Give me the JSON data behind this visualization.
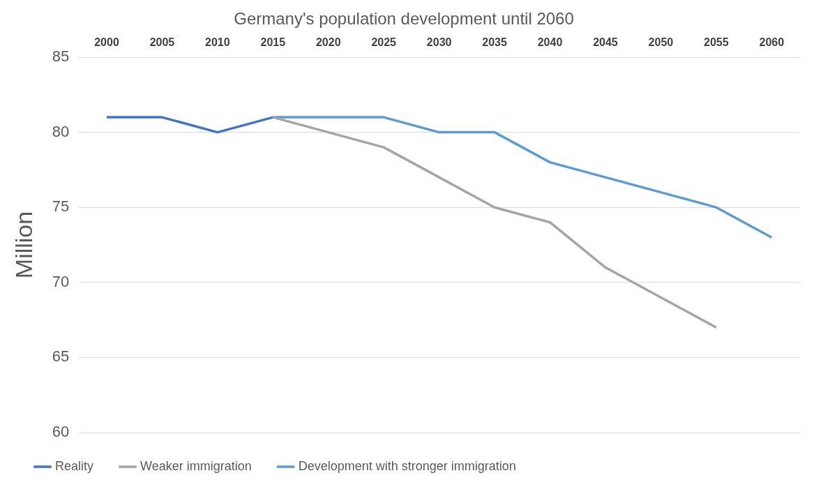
{
  "chart_data": {
    "type": "line",
    "title": "Germany's population development until 2060",
    "ylabel": "Million",
    "categories": [
      "2000",
      "2005",
      "2010",
      "2015",
      "2020",
      "2025",
      "2030",
      "2035",
      "2040",
      "2045",
      "2050",
      "2055",
      "2060"
    ],
    "series": [
      {
        "name": "Reality",
        "color": "#4472c4",
        "values": [
          81,
          81,
          80,
          81,
          null,
          null,
          null,
          null,
          null,
          null,
          null,
          null,
          null
        ]
      },
      {
        "name": "Weaker immigration",
        "color": "#a5a5a5",
        "values": [
          null,
          null,
          null,
          81,
          80,
          79,
          77,
          75,
          74,
          71,
          69,
          67,
          null
        ]
      },
      {
        "name": "Development with stronger immigration",
        "color": "#5b9bd5",
        "values": [
          null,
          null,
          null,
          81,
          81,
          81,
          80,
          80,
          78,
          77,
          76,
          75,
          73
        ]
      }
    ],
    "ylim": [
      60,
      85
    ],
    "yticks": [
      60,
      65,
      70,
      75,
      80,
      85
    ],
    "grid": "y",
    "legend": "bottom",
    "marker": "none",
    "line_style": "solid"
  }
}
